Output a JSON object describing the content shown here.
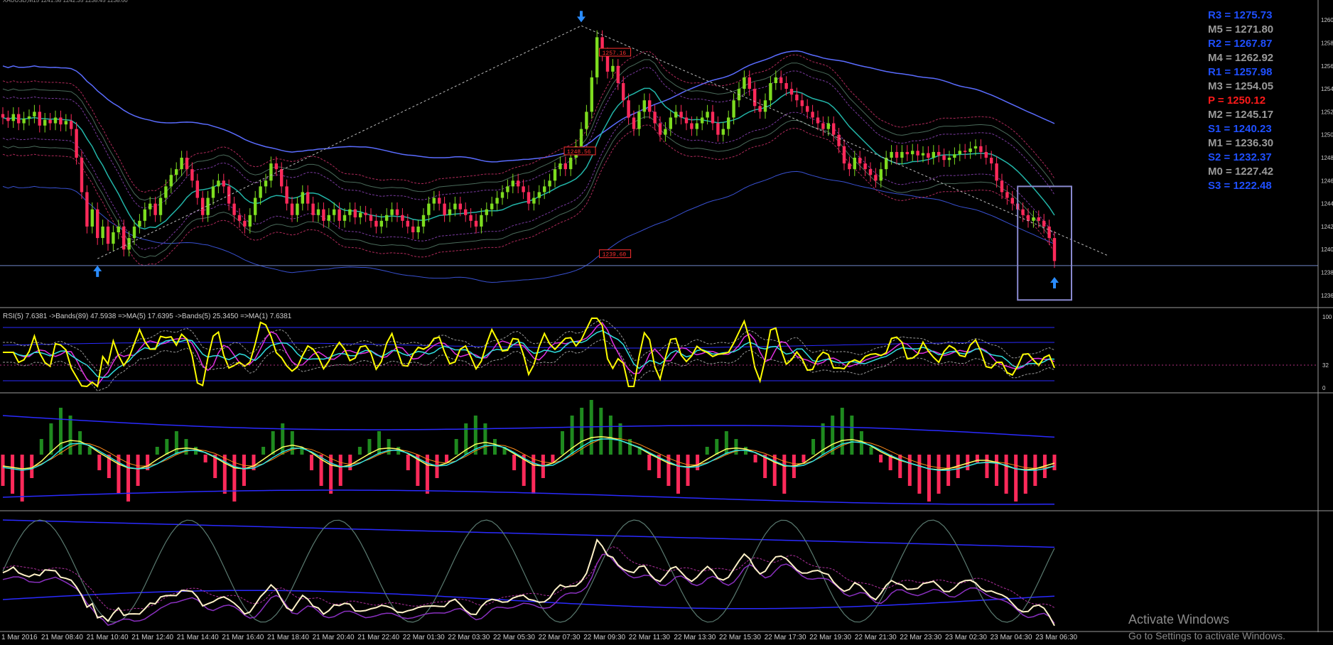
{
  "chart_data": {
    "type": "line",
    "symbol_strip": "XAUUSD,M15  1241.58 1242.35 1238.45 1238.60",
    "pivots": [
      {
        "label": "R3 = 1275.73",
        "color": "#1f4fff"
      },
      {
        "label": "M5 = 1271.80",
        "color": "#9a9a9a"
      },
      {
        "label": "R2 = 1267.87",
        "color": "#1f4fff"
      },
      {
        "label": "M4 = 1262.92",
        "color": "#9a9a9a"
      },
      {
        "label": "R1 = 1257.98",
        "color": "#1f4fff"
      },
      {
        "label": "M3 = 1254.05",
        "color": "#9a9a9a"
      },
      {
        "label": "P   = 1250.12",
        "color": "#ff1a1a"
      },
      {
        "label": "M2 = 1245.17",
        "color": "#9a9a9a"
      },
      {
        "label": "S1 = 1240.23",
        "color": "#1f4fff"
      },
      {
        "label": "M1 = 1236.30",
        "color": "#9a9a9a"
      },
      {
        "label": "S2 = 1232.37",
        "color": "#1f4fff"
      },
      {
        "label": "M0 = 1227.42",
        "color": "#9a9a9a"
      },
      {
        "label": "S3 = 1222.48",
        "color": "#1f4fff"
      }
    ],
    "price_tags": [
      {
        "text": "1257.16",
        "price": 1257.16,
        "x_index": 104
      },
      {
        "text": "1248.56",
        "price": 1248.56,
        "x_index": 100
      },
      {
        "text": "1239.60",
        "price": 1239.6,
        "x_index": 104
      }
    ],
    "price_axis": [
      "1260",
      "1258",
      "1256",
      "1254",
      "1252",
      "1250",
      "1248",
      "1246",
      "1244",
      "1242",
      "1240",
      "1238",
      "1236"
    ],
    "ylim_price": [
      1235,
      1261
    ],
    "rsi_panel": {
      "label": "RSI(5) 7.6381  ->Bands(89) 47.5938  =>MA(5) 17.6395  ->Bands(5) 25.3450  =>MA(1) 7.6381",
      "ylim": [
        0,
        100
      ],
      "levels": [
        "100",
        "32",
        "0"
      ]
    },
    "x_categories": [
      "1 Mar 2016",
      "21 Mar 08:40",
      "21 Mar 10:40",
      "21 Mar 12:40",
      "21 Mar 14:40",
      "21 Mar 16:40",
      "21 Mar 18:40",
      "21 Mar 20:40",
      "21 Mar 22:40",
      "22 Mar 01:30",
      "22 Mar 03:30",
      "22 Mar 05:30",
      "22 Mar 07:30",
      "22 Mar 09:30",
      "22 Mar 11:30",
      "22 Mar 13:30",
      "22 Mar 15:30",
      "22 Mar 17:30",
      "22 Mar 19:30",
      "22 Mar 21:30",
      "22 Mar 23:30",
      "23 Mar 02:30",
      "23 Mar 04:30",
      "23 Mar 06:30"
    ],
    "closes": [
      1251.5,
      1251.2,
      1251.8,
      1251.0,
      1251.4,
      1251.6,
      1252.0,
      1250.8,
      1251.3,
      1251.0,
      1251.5,
      1250.9,
      1251.2,
      1250.5,
      1248.0,
      1245.0,
      1242.0,
      1243.5,
      1241.0,
      1242.0,
      1240.5,
      1241.5,
      1242.0,
      1240.0,
      1241.0,
      1242.0,
      1242.5,
      1243.5,
      1244.0,
      1243.0,
      1244.5,
      1245.5,
      1246.5,
      1247.0,
      1248.0,
      1247.0,
      1246.0,
      1244.5,
      1243.0,
      1244.5,
      1245.5,
      1246.0,
      1245.5,
      1244.0,
      1243.0,
      1242.5,
      1242.0,
      1243.0,
      1244.5,
      1245.5,
      1246.0,
      1247.5,
      1247.0,
      1245.5,
      1244.0,
      1243.0,
      1244.0,
      1245.0,
      1244.0,
      1243.0,
      1243.5,
      1242.5,
      1243.0,
      1243.5,
      1242.5,
      1243.0,
      1243.5,
      1242.8,
      1243.2,
      1243.0,
      1242.5,
      1242.0,
      1242.5,
      1243.0,
      1243.5,
      1243.0,
      1242.5,
      1242.0,
      1241.5,
      1242.0,
      1243.0,
      1244.0,
      1244.5,
      1244.0,
      1243.0,
      1243.5,
      1244.0,
      1243.5,
      1243.0,
      1242.5,
      1242.0,
      1243.0,
      1243.5,
      1244.0,
      1244.5,
      1245.0,
      1245.5,
      1246.0,
      1245.5,
      1245.0,
      1244.0,
      1244.5,
      1245.0,
      1245.5,
      1246.0,
      1247.0,
      1247.5,
      1247.0,
      1248.0,
      1249.0,
      1250.5,
      1252.0,
      1255.0,
      1258.5,
      1257.0,
      1255.5,
      1256.0,
      1254.5,
      1253.0,
      1251.5,
      1250.5,
      1252.0,
      1253.0,
      1252.0,
      1251.0,
      1250.0,
      1250.5,
      1251.5,
      1252.0,
      1251.5,
      1251.0,
      1250.5,
      1251.0,
      1251.5,
      1252.0,
      1251.0,
      1250.0,
      1250.5,
      1251.5,
      1253.0,
      1254.0,
      1255.0,
      1254.0,
      1252.5,
      1252.0,
      1253.0,
      1254.5,
      1255.0,
      1254.5,
      1254.0,
      1253.5,
      1253.0,
      1252.5,
      1252.0,
      1251.5,
      1251.0,
      1250.5,
      1251.0,
      1250.0,
      1249.0,
      1247.5,
      1247.0,
      1248.0,
      1247.5,
      1247.0,
      1246.5,
      1246.0,
      1247.0,
      1248.0,
      1248.5,
      1248.0,
      1248.5,
      1248.3,
      1248.6,
      1248.2,
      1248.4,
      1248.0,
      1248.5,
      1248.2,
      1247.8,
      1248.0,
      1248.3,
      1248.6,
      1248.5,
      1248.8,
      1249.0,
      1248.5,
      1248.0,
      1247.5,
      1246.0,
      1245.0,
      1244.5,
      1244.0,
      1243.5,
      1243.0,
      1242.5,
      1242.8,
      1242.5,
      1242.0,
      1241.0,
      1239.0
    ],
    "histogram": [
      -4,
      -5,
      -6,
      -3,
      2,
      4,
      6,
      5,
      3,
      1,
      -2,
      -3,
      -5,
      -6,
      -4,
      -2,
      1,
      2,
      3,
      2,
      1,
      -1,
      -3,
      -5,
      -6,
      -4,
      -2,
      1,
      3,
      4,
      3,
      1,
      -2,
      -4,
      -5,
      -4,
      -2,
      1,
      2,
      3,
      2,
      1,
      -2,
      -4,
      -5,
      -3,
      -1,
      2,
      4,
      5,
      4,
      2,
      1,
      -2,
      -4,
      -5,
      -3,
      -1,
      3,
      5,
      6,
      7,
      6,
      5,
      4,
      2,
      1,
      -2,
      -3,
      -4,
      -5,
      -4,
      -2,
      1,
      2,
      3,
      2,
      1,
      -1,
      -3,
      -4,
      -5,
      -3,
      -1,
      2,
      4,
      5,
      6,
      5,
      3,
      1,
      -1,
      -2,
      -3,
      -4,
      -5,
      -6,
      -5,
      -4,
      -3,
      -2,
      -1,
      -3,
      -4,
      -5,
      -6,
      -5,
      -4,
      -3,
      -2
    ]
  },
  "watermark": {
    "line1": "Activate Windows",
    "line2": "Go to Settings to activate Windows."
  }
}
